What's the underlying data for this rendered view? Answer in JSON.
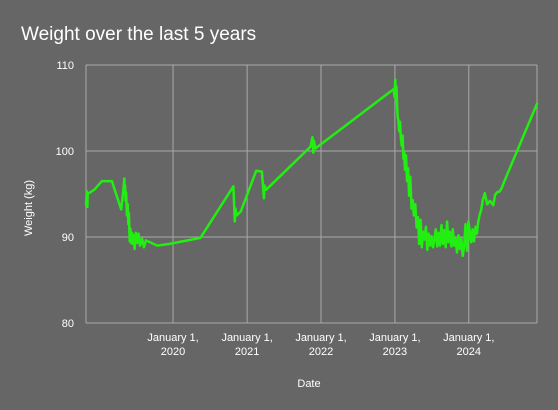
{
  "chart_data": {
    "type": "line",
    "title": "Weight over the last 5 years",
    "xlabel": "Date",
    "ylabel": "Weight (kg)",
    "ylim": [
      80,
      110
    ],
    "xlim": [
      "2018-10-28",
      "2024-12-03"
    ],
    "y_ticks": [
      80,
      90,
      100,
      110
    ],
    "x_ticks": [
      {
        "date": "2020-01-01",
        "line1": "January 1,",
        "line2": "2020"
      },
      {
        "date": "2021-01-01",
        "line1": "January 1,",
        "line2": "2021"
      },
      {
        "date": "2022-01-01",
        "line1": "January 1,",
        "line2": "2022"
      },
      {
        "date": "2023-01-01",
        "line1": "January 1,",
        "line2": "2023"
      },
      {
        "date": "2024-01-01",
        "line1": "January 1,",
        "line2": "2024"
      }
    ],
    "grid": true,
    "legend": "none",
    "colors": {
      "background": "#666666",
      "line": "#22ee11",
      "grid": "#aaaaaa",
      "text": "#ffffff"
    },
    "series": [
      {
        "x": [
          "2018-10-28",
          "2018-11-01",
          "2018-11-04",
          "2018-11-05",
          "2018-12-08",
          "2019-01-15",
          "2019-02-05",
          "2019-03-05",
          "2019-04-20",
          "2019-05-01",
          "2019-05-05",
          "2019-05-07",
          "2019-05-09",
          "2019-05-11",
          "2019-05-14",
          "2019-05-18",
          "2019-05-22",
          "2019-05-25",
          "2019-05-28",
          "2019-06-01",
          "2019-06-04",
          "2019-06-08",
          "2019-06-12",
          "2019-06-16",
          "2019-06-20",
          "2019-06-25",
          "2019-07-01",
          "2019-07-08",
          "2019-07-15",
          "2019-07-22",
          "2019-08-01",
          "2019-08-10",
          "2019-08-20",
          "2019-10-15",
          "2019-12-15",
          "2020-05-15",
          "2020-10-25",
          "2020-11-01",
          "2020-11-04",
          "2020-11-10",
          "2020-12-01",
          "2021-02-15",
          "2021-03-15",
          "2021-03-25",
          "2021-03-28",
          "2021-04-05",
          "2021-11-10",
          "2021-11-20",
          "2021-11-24",
          "2021-11-27",
          "2021-12-05",
          "2022-12-26",
          "2022-12-30",
          "2023-01-03",
          "2023-01-06",
          "2023-01-09",
          "2023-01-12",
          "2023-01-15",
          "2023-01-18",
          "2023-01-22",
          "2023-01-26",
          "2023-01-30",
          "2023-02-04",
          "2023-02-08",
          "2023-02-12",
          "2023-02-16",
          "2023-02-20",
          "2023-02-25",
          "2023-03-02",
          "2023-03-07",
          "2023-03-12",
          "2023-03-18",
          "2023-03-24",
          "2023-03-30",
          "2023-04-05",
          "2023-04-12",
          "2023-04-18",
          "2023-04-25",
          "2023-05-01",
          "2023-05-08",
          "2023-05-14",
          "2023-05-20",
          "2023-05-27",
          "2023-06-03",
          "2023-06-10",
          "2023-06-17",
          "2023-06-24",
          "2023-07-01",
          "2023-07-08",
          "2023-07-15",
          "2023-07-22",
          "2023-07-29",
          "2023-08-05",
          "2023-08-12",
          "2023-08-19",
          "2023-08-26",
          "2023-09-02",
          "2023-09-09",
          "2023-09-16",
          "2023-09-23",
          "2023-09-30",
          "2023-10-07",
          "2023-10-14",
          "2023-10-21",
          "2023-10-28",
          "2023-11-04",
          "2023-11-11",
          "2023-11-18",
          "2023-11-25",
          "2023-12-02",
          "2023-12-09",
          "2023-12-16",
          "2023-12-23",
          "2023-12-30",
          "2024-01-06",
          "2024-01-13",
          "2024-01-20",
          "2024-01-27",
          "2024-02-03",
          "2024-02-10",
          "2024-02-17",
          "2024-02-24",
          "2024-03-02",
          "2024-03-10",
          "2024-03-20",
          "2024-04-01",
          "2024-04-15",
          "2024-05-01",
          "2024-05-10",
          "2024-05-20",
          "2024-06-01",
          "2024-06-10",
          "2024-06-25",
          "2024-12-03"
        ],
        "y": [
          93.8,
          95.3,
          93.5,
          95.0,
          95.5,
          96.5,
          96.5,
          96.5,
          93.2,
          95.5,
          96.8,
          95.0,
          96.0,
          94.2,
          95.2,
          92.5,
          93.8,
          91.5,
          92.8,
          89.5,
          91.0,
          89.3,
          90.5,
          89.2,
          90.2,
          88.6,
          90.5,
          89.3,
          90.4,
          89.0,
          89.8,
          88.8,
          89.6,
          89.0,
          89.2,
          89.9,
          95.9,
          91.8,
          93.3,
          92.5,
          93.0,
          97.7,
          97.6,
          94.5,
          96.0,
          95.5,
          100.5,
          101.6,
          99.8,
          101.2,
          100.3,
          107.2,
          106.3,
          108.3,
          105.8,
          107.5,
          105.2,
          104.0,
          103.6,
          102.3,
          103.4,
          101.6,
          100.6,
          101.8,
          99.1,
          99.9,
          97.8,
          99.5,
          96.5,
          98.0,
          94.8,
          97.0,
          93.3,
          94.3,
          92.5,
          93.8,
          91.1,
          92.3,
          89.2,
          92.0,
          88.8,
          90.6,
          89.7,
          91.2,
          88.5,
          90.4,
          89.0,
          90.1,
          88.8,
          89.7,
          90.9,
          88.9,
          90.5,
          89.0,
          91.4,
          89.2,
          90.8,
          88.8,
          91.8,
          89.4,
          90.6,
          88.9,
          90.9,
          89.0,
          89.8,
          88.2,
          90.2,
          88.6,
          89.9,
          87.8,
          88.8,
          91.5,
          88.4,
          91.8,
          90.6,
          89.4,
          90.9,
          89.5,
          91.2,
          90.4,
          91.8,
          92.6,
          93.1,
          94.3,
          95.1,
          93.8,
          94.2,
          93.7,
          94.9,
          95.2,
          95.3,
          95.6,
          96.5,
          105.5
        ]
      }
    ]
  }
}
